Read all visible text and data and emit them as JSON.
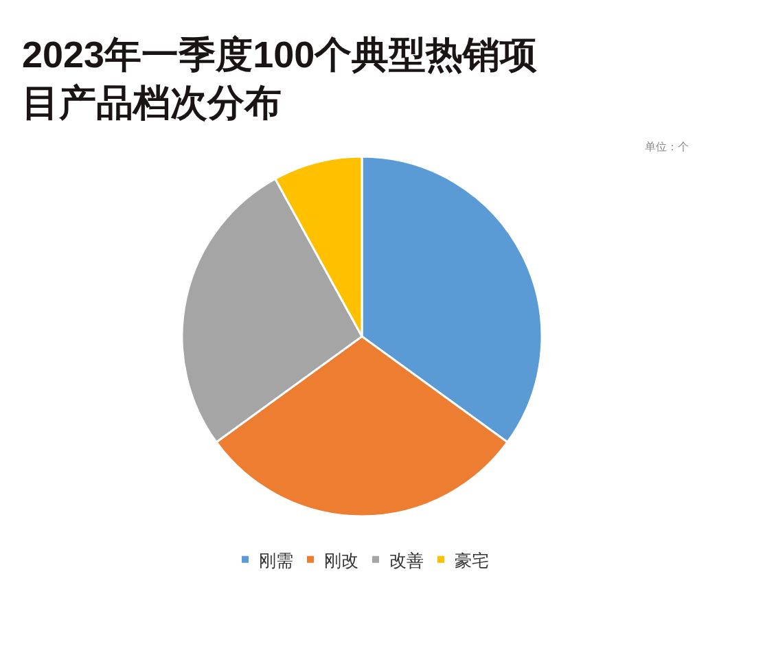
{
  "chart_data": {
    "type": "pie",
    "title": "2023年一季度100个典型热销项目产品档次分布",
    "categories": [
      "刚需",
      "刚改",
      "改善",
      "豪宅"
    ],
    "values": [
      35,
      30,
      27,
      8
    ],
    "colors": [
      "#5b9bd5",
      "#ed7d31",
      "#a5a5a5",
      "#ffc000"
    ],
    "legend": "bottom",
    "annotations": [
      "单位：个"
    ]
  }
}
